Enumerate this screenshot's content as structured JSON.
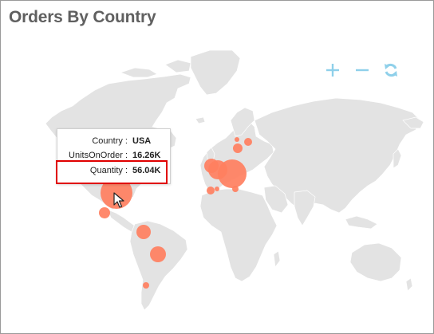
{
  "title": "Orders By Country",
  "controls": {
    "zoom_in_icon": "plus-icon",
    "zoom_out_icon": "minus-icon",
    "reset_icon": "refresh-icon",
    "accent_color": "#8fd0ea"
  },
  "map": {
    "land_color": "#e3e3e3",
    "border_color": "#ffffff",
    "bubble_color": "#ff7f5f",
    "bubbles": [
      {
        "region": "USA"
      },
      {
        "region": "Mexico"
      },
      {
        "region": "Venezuela"
      },
      {
        "region": "Brazil"
      },
      {
        "region": "Argentina"
      },
      {
        "region": "Germany"
      },
      {
        "region": "France"
      },
      {
        "region": "UK"
      },
      {
        "region": "Sweden"
      },
      {
        "region": "Finland"
      },
      {
        "region": "Spain"
      },
      {
        "region": "Portugal"
      },
      {
        "region": "Italy"
      },
      {
        "region": "Norway"
      }
    ]
  },
  "tooltip": {
    "rows": [
      {
        "label": "Country :",
        "value": "USA"
      },
      {
        "label": "UnitsOnOrder :",
        "value": "16.26K"
      },
      {
        "label": "Quantity :",
        "value": "56.04K"
      }
    ]
  }
}
